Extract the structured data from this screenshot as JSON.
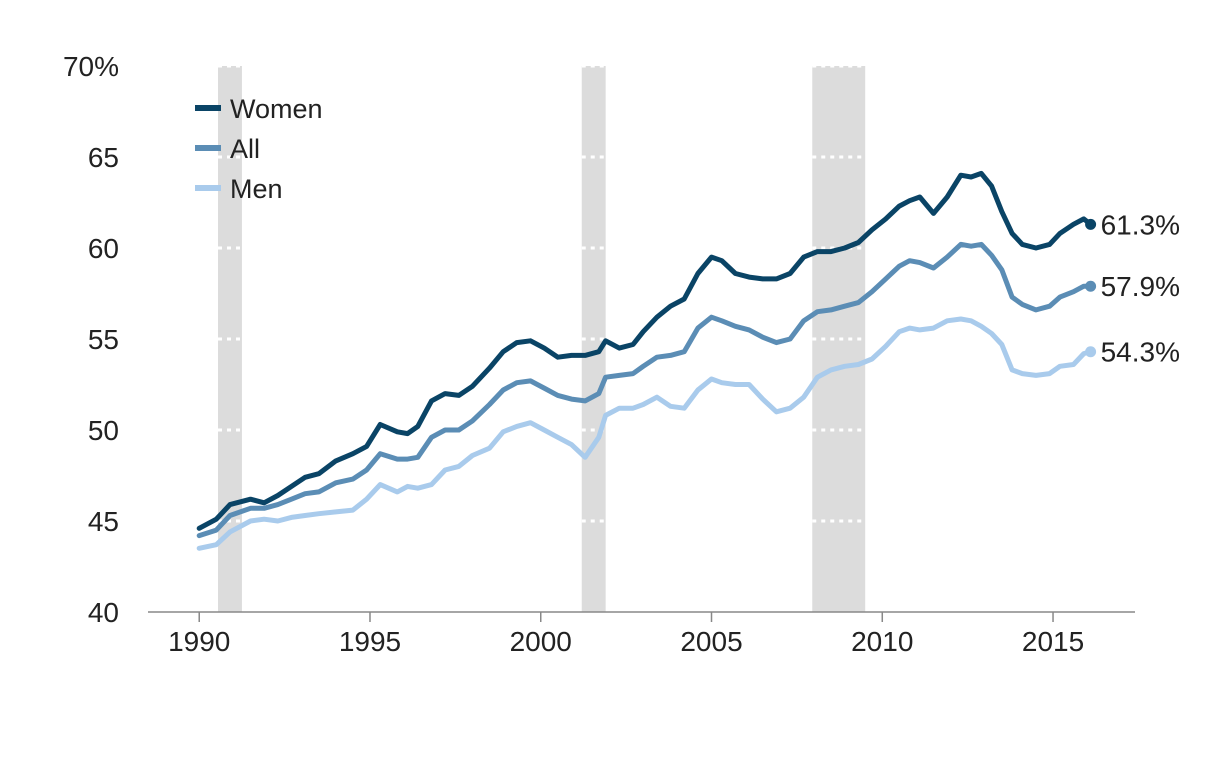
{
  "chart_data": {
    "type": "line",
    "title": "",
    "xlabel": "",
    "ylabel": "",
    "xlim": [
      1988.5,
      2017.4
    ],
    "ylim": [
      40,
      70
    ],
    "x_ticks": [
      {
        "value": 1990,
        "label": "1990"
      },
      {
        "value": 1995,
        "label": "1995"
      },
      {
        "value": 2000,
        "label": "2000"
      },
      {
        "value": 2005,
        "label": "2005"
      },
      {
        "value": 2010,
        "label": "2010"
      },
      {
        "value": 2015,
        "label": "2015"
      }
    ],
    "y_ticks": [
      {
        "value": 40,
        "label": "40"
      },
      {
        "value": 45,
        "label": "45"
      },
      {
        "value": 50,
        "label": "50"
      },
      {
        "value": 55,
        "label": "55"
      },
      {
        "value": 60,
        "label": "60"
      },
      {
        "value": 65,
        "label": "65"
      },
      {
        "value": 70,
        "label": "70%"
      }
    ],
    "grid": "horizontal dotted, inside shaded bands only",
    "legend_position": "top-left",
    "recessions": [
      {
        "start": 1990.55,
        "end": 1991.25
      },
      {
        "start": 2001.2,
        "end": 2001.9
      },
      {
        "start": 2007.95,
        "end": 2009.5
      }
    ],
    "series": [
      {
        "name": "Women",
        "color": "#0a4466",
        "end_label": "61.3%",
        "points": [
          [
            1990.0,
            44.6
          ],
          [
            1990.5,
            45.1
          ],
          [
            1990.9,
            45.9
          ],
          [
            1991.5,
            46.2
          ],
          [
            1991.9,
            46.0
          ],
          [
            1992.3,
            46.4
          ],
          [
            1992.7,
            46.9
          ],
          [
            1993.1,
            47.4
          ],
          [
            1993.5,
            47.6
          ],
          [
            1994.0,
            48.3
          ],
          [
            1994.5,
            48.7
          ],
          [
            1994.9,
            49.1
          ],
          [
            1995.3,
            50.3
          ],
          [
            1995.8,
            49.9
          ],
          [
            1996.1,
            49.8
          ],
          [
            1996.4,
            50.2
          ],
          [
            1996.8,
            51.6
          ],
          [
            1997.2,
            52.0
          ],
          [
            1997.6,
            51.9
          ],
          [
            1998.0,
            52.4
          ],
          [
            1998.5,
            53.4
          ],
          [
            1998.9,
            54.3
          ],
          [
            1999.3,
            54.8
          ],
          [
            1999.7,
            54.9
          ],
          [
            2000.1,
            54.5
          ],
          [
            2000.5,
            54.0
          ],
          [
            2000.9,
            54.1
          ],
          [
            2001.3,
            54.1
          ],
          [
            2001.7,
            54.3
          ],
          [
            2001.9,
            54.9
          ],
          [
            2002.3,
            54.5
          ],
          [
            2002.7,
            54.7
          ],
          [
            2003.0,
            55.4
          ],
          [
            2003.4,
            56.2
          ],
          [
            2003.8,
            56.8
          ],
          [
            2004.2,
            57.2
          ],
          [
            2004.6,
            58.6
          ],
          [
            2005.0,
            59.5
          ],
          [
            2005.3,
            59.3
          ],
          [
            2005.7,
            58.6
          ],
          [
            2006.1,
            58.4
          ],
          [
            2006.5,
            58.3
          ],
          [
            2006.9,
            58.3
          ],
          [
            2007.3,
            58.6
          ],
          [
            2007.7,
            59.5
          ],
          [
            2008.1,
            59.8
          ],
          [
            2008.5,
            59.8
          ],
          [
            2008.9,
            60.0
          ],
          [
            2009.3,
            60.3
          ],
          [
            2009.7,
            61.0
          ],
          [
            2010.1,
            61.6
          ],
          [
            2010.5,
            62.3
          ],
          [
            2010.8,
            62.6
          ],
          [
            2011.1,
            62.8
          ],
          [
            2011.5,
            61.9
          ],
          [
            2011.9,
            62.8
          ],
          [
            2012.3,
            64.0
          ],
          [
            2012.6,
            63.9
          ],
          [
            2012.9,
            64.1
          ],
          [
            2013.2,
            63.4
          ],
          [
            2013.5,
            62.0
          ],
          [
            2013.8,
            60.8
          ],
          [
            2014.1,
            60.2
          ],
          [
            2014.5,
            60.0
          ],
          [
            2014.9,
            60.2
          ],
          [
            2015.2,
            60.8
          ],
          [
            2015.6,
            61.3
          ],
          [
            2015.9,
            61.6
          ],
          [
            2016.1,
            61.3
          ]
        ]
      },
      {
        "name": "All",
        "color": "#5b8db5",
        "end_label": "57.9%",
        "points": [
          [
            1990.0,
            44.2
          ],
          [
            1990.5,
            44.5
          ],
          [
            1990.9,
            45.3
          ],
          [
            1991.5,
            45.7
          ],
          [
            1991.9,
            45.7
          ],
          [
            1992.3,
            45.9
          ],
          [
            1992.7,
            46.2
          ],
          [
            1993.1,
            46.5
          ],
          [
            1993.5,
            46.6
          ],
          [
            1994.0,
            47.1
          ],
          [
            1994.5,
            47.3
          ],
          [
            1994.9,
            47.8
          ],
          [
            1995.3,
            48.7
          ],
          [
            1995.8,
            48.4
          ],
          [
            1996.1,
            48.4
          ],
          [
            1996.4,
            48.5
          ],
          [
            1996.8,
            49.6
          ],
          [
            1997.2,
            50.0
          ],
          [
            1997.6,
            50.0
          ],
          [
            1998.0,
            50.5
          ],
          [
            1998.5,
            51.4
          ],
          [
            1998.9,
            52.2
          ],
          [
            1999.3,
            52.6
          ],
          [
            1999.7,
            52.7
          ],
          [
            2000.1,
            52.3
          ],
          [
            2000.5,
            51.9
          ],
          [
            2000.9,
            51.7
          ],
          [
            2001.3,
            51.6
          ],
          [
            2001.7,
            52.0
          ],
          [
            2001.9,
            52.9
          ],
          [
            2002.3,
            53.0
          ],
          [
            2002.7,
            53.1
          ],
          [
            2003.0,
            53.5
          ],
          [
            2003.4,
            54.0
          ],
          [
            2003.8,
            54.1
          ],
          [
            2004.2,
            54.3
          ],
          [
            2004.6,
            55.6
          ],
          [
            2005.0,
            56.2
          ],
          [
            2005.3,
            56.0
          ],
          [
            2005.7,
            55.7
          ],
          [
            2006.1,
            55.5
          ],
          [
            2006.5,
            55.1
          ],
          [
            2006.9,
            54.8
          ],
          [
            2007.3,
            55.0
          ],
          [
            2007.7,
            56.0
          ],
          [
            2008.1,
            56.5
          ],
          [
            2008.5,
            56.6
          ],
          [
            2008.9,
            56.8
          ],
          [
            2009.3,
            57.0
          ],
          [
            2009.7,
            57.6
          ],
          [
            2010.1,
            58.3
          ],
          [
            2010.5,
            59.0
          ],
          [
            2010.8,
            59.3
          ],
          [
            2011.1,
            59.2
          ],
          [
            2011.5,
            58.9
          ],
          [
            2011.9,
            59.5
          ],
          [
            2012.3,
            60.2
          ],
          [
            2012.6,
            60.1
          ],
          [
            2012.9,
            60.2
          ],
          [
            2013.2,
            59.6
          ],
          [
            2013.5,
            58.8
          ],
          [
            2013.8,
            57.3
          ],
          [
            2014.1,
            56.9
          ],
          [
            2014.5,
            56.6
          ],
          [
            2014.9,
            56.8
          ],
          [
            2015.2,
            57.3
          ],
          [
            2015.6,
            57.6
          ],
          [
            2015.9,
            57.9
          ],
          [
            2016.1,
            57.9
          ]
        ]
      },
      {
        "name": "Men",
        "color": "#a9cbec",
        "end_label": "54.3%",
        "points": [
          [
            1990.0,
            43.5
          ],
          [
            1990.5,
            43.7
          ],
          [
            1990.9,
            44.4
          ],
          [
            1991.5,
            45.0
          ],
          [
            1991.9,
            45.1
          ],
          [
            1992.3,
            45.0
          ],
          [
            1992.7,
            45.2
          ],
          [
            1993.1,
            45.3
          ],
          [
            1993.5,
            45.4
          ],
          [
            1994.0,
            45.5
          ],
          [
            1994.5,
            45.6
          ],
          [
            1994.9,
            46.2
          ],
          [
            1995.3,
            47.0
          ],
          [
            1995.8,
            46.6
          ],
          [
            1996.1,
            46.9
          ],
          [
            1996.4,
            46.8
          ],
          [
            1996.8,
            47.0
          ],
          [
            1997.2,
            47.8
          ],
          [
            1997.6,
            48.0
          ],
          [
            1998.0,
            48.6
          ],
          [
            1998.5,
            49.0
          ],
          [
            1998.9,
            49.9
          ],
          [
            1999.3,
            50.2
          ],
          [
            1999.7,
            50.4
          ],
          [
            2000.1,
            50.0
          ],
          [
            2000.5,
            49.6
          ],
          [
            2000.9,
            49.2
          ],
          [
            2001.3,
            48.5
          ],
          [
            2001.7,
            49.6
          ],
          [
            2001.9,
            50.8
          ],
          [
            2002.3,
            51.2
          ],
          [
            2002.7,
            51.2
          ],
          [
            2003.0,
            51.4
          ],
          [
            2003.4,
            51.8
          ],
          [
            2003.8,
            51.3
          ],
          [
            2004.2,
            51.2
          ],
          [
            2004.6,
            52.2
          ],
          [
            2005.0,
            52.8
          ],
          [
            2005.3,
            52.6
          ],
          [
            2005.7,
            52.5
          ],
          [
            2006.1,
            52.5
          ],
          [
            2006.5,
            51.7
          ],
          [
            2006.9,
            51.0
          ],
          [
            2007.3,
            51.2
          ],
          [
            2007.7,
            51.8
          ],
          [
            2008.1,
            52.9
          ],
          [
            2008.5,
            53.3
          ],
          [
            2008.9,
            53.5
          ],
          [
            2009.3,
            53.6
          ],
          [
            2009.7,
            53.9
          ],
          [
            2010.1,
            54.6
          ],
          [
            2010.5,
            55.4
          ],
          [
            2010.8,
            55.6
          ],
          [
            2011.1,
            55.5
          ],
          [
            2011.5,
            55.6
          ],
          [
            2011.9,
            56.0
          ],
          [
            2012.3,
            56.1
          ],
          [
            2012.6,
            56.0
          ],
          [
            2012.9,
            55.7
          ],
          [
            2013.2,
            55.3
          ],
          [
            2013.5,
            54.7
          ],
          [
            2013.8,
            53.3
          ],
          [
            2014.1,
            53.1
          ],
          [
            2014.5,
            53.0
          ],
          [
            2014.9,
            53.1
          ],
          [
            2015.2,
            53.5
          ],
          [
            2015.6,
            53.6
          ],
          [
            2015.9,
            54.2
          ],
          [
            2016.1,
            54.3
          ]
        ]
      }
    ]
  }
}
